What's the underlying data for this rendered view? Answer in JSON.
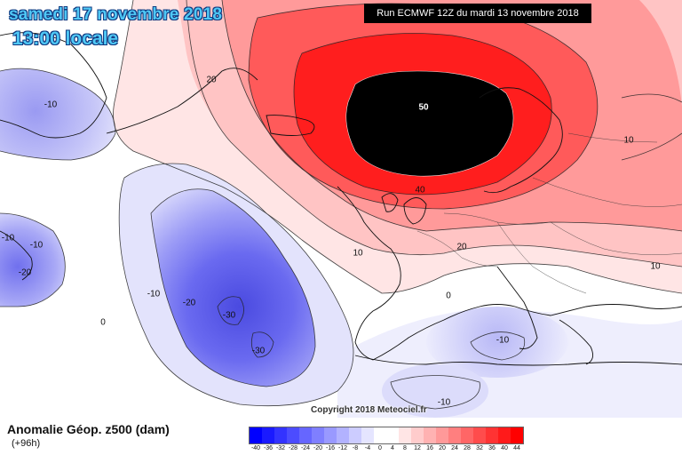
{
  "header": {
    "date_line": "samedi 17 novembre 2018",
    "time_line": "13:00 locale",
    "run_info": "Run ECMWF 12Z du mardi 13 novembre 2018",
    "copyright": "Copyright 2018 Meteociel.fr"
  },
  "footer": {
    "variable_title": "Anomalie Géop. z500 (dam)",
    "lead_time": "(+96h)"
  },
  "colors": {
    "strongest_positive": "#000000",
    "strong_red": "#ff2020",
    "negative_blue": "#5050e8",
    "background": "#ffffff"
  },
  "contour_labels": [
    {
      "text": "50",
      "tone": "light"
    },
    {
      "text": "40",
      "tone": "dark"
    },
    {
      "text": "20",
      "tone": "dark"
    },
    {
      "text": "20",
      "tone": "dark"
    },
    {
      "text": "10",
      "tone": "dark"
    },
    {
      "text": "10",
      "tone": "dark"
    },
    {
      "text": "10",
      "tone": "dark"
    },
    {
      "text": "0",
      "tone": "dark"
    },
    {
      "text": "-10",
      "tone": "dark"
    },
    {
      "text": "-10",
      "tone": "dark"
    },
    {
      "text": "-10",
      "tone": "dark"
    },
    {
      "text": "-10",
      "tone": "dark"
    },
    {
      "text": "-10",
      "tone": "dark"
    },
    {
      "text": "-10",
      "tone": "dark"
    },
    {
      "text": "-20",
      "tone": "dark"
    },
    {
      "text": "-20",
      "tone": "dark"
    },
    {
      "text": "-30",
      "tone": "dark"
    },
    {
      "text": "-30",
      "tone": "dark"
    },
    {
      "text": "0",
      "tone": "dark"
    }
  ],
  "colorbar": {
    "ticks": [
      "-40",
      "-36",
      "-32",
      "-28",
      "-24",
      "-20",
      "-16",
      "-12",
      "-8",
      "-4",
      "0",
      "4",
      "8",
      "12",
      "16",
      "20",
      "24",
      "28",
      "32",
      "36",
      "40",
      "44"
    ],
    "colors": [
      "#0000ff",
      "#1a1aff",
      "#3333ff",
      "#4c4cff",
      "#6666ff",
      "#7f7fff",
      "#9999ff",
      "#b2b2ff",
      "#ccccff",
      "#e5e5ff",
      "#ffffff",
      "#ffffff",
      "#ffe5e5",
      "#ffcccc",
      "#ffb2b2",
      "#ff9999",
      "#ff7f7f",
      "#ff6666",
      "#ff4c4c",
      "#ff3333",
      "#ff1a1a",
      "#ff0000"
    ]
  }
}
